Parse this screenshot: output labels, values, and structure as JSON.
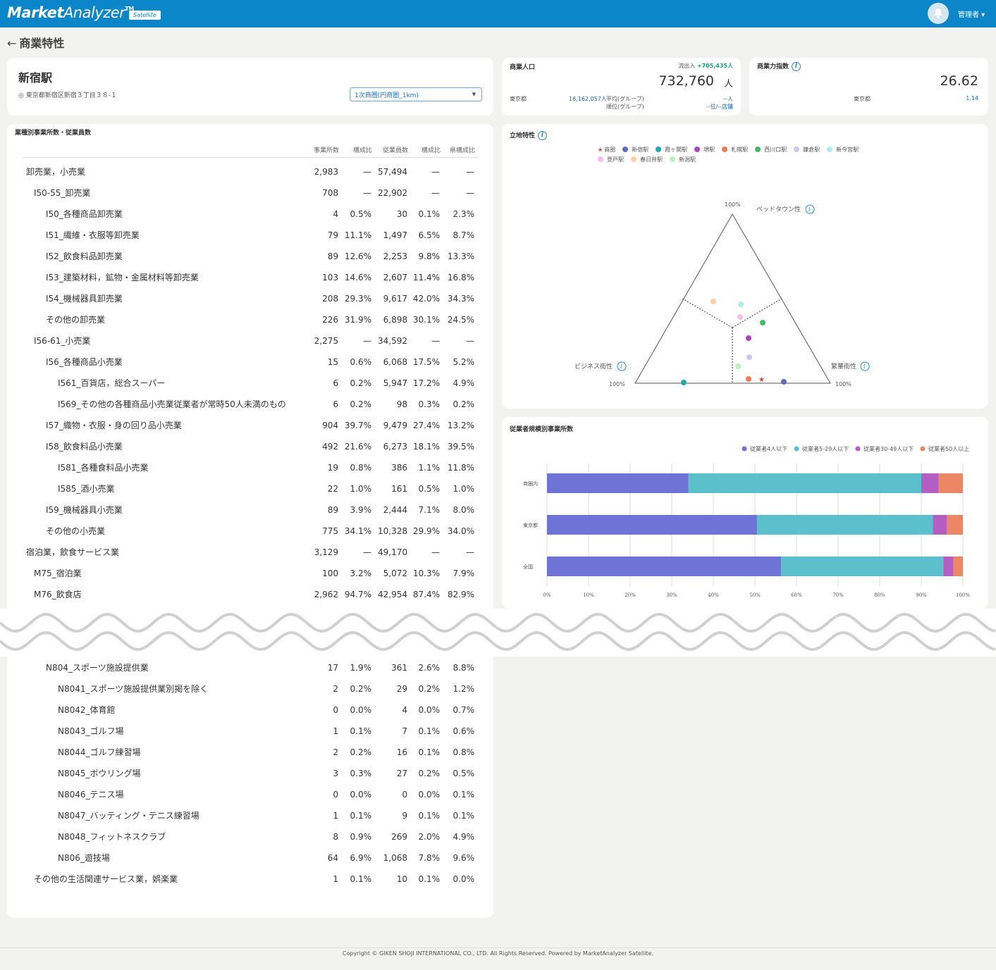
{
  "header": {
    "logo_bold": "Market",
    "logo_thin": "Analyzer",
    "logo_tm": "TM",
    "badge": "Satellite",
    "user": "管理者 ▾"
  },
  "page": {
    "back_arrow": "←",
    "title": "商業特性"
  },
  "station": {
    "name": "新宿駅",
    "address": "◎ 東京都新宿区新宿３丁目３８-１",
    "select_value": "1次商圏(円商圏_1km)"
  },
  "population": {
    "title": "商業人口",
    "flow_label": "流出入",
    "flow_value": "+705,435人",
    "value": "732,760",
    "unit": "人",
    "pref_label": "東京都",
    "pref_value": "16,162,057人",
    "avg_label": "平均(グループ)",
    "avg_value": "--人",
    "rank_label": "順位(グループ)",
    "rank_value": "--位/--店舗"
  },
  "power_index": {
    "title": "商業力指数",
    "value": "26.62",
    "pref_label": "東京都",
    "pref_value": "1.14"
  },
  "industry": {
    "title": "業種別事業所数・従業員数",
    "columns": [
      "事業所数",
      "構成比",
      "従業員数",
      "構成比",
      "県構成比"
    ],
    "rows_top": [
      {
        "indent": 0,
        "name": "卸売業，小売業",
        "v1": "2,983",
        "v2": "—",
        "v3": "57,494",
        "v4": "—",
        "v5": "—",
        "trend": ""
      },
      {
        "indent": 1,
        "name": "I50-55_卸売業",
        "v1": "708",
        "v2": "—",
        "v3": "22,902",
        "v4": "—",
        "v5": "—",
        "trend": ""
      },
      {
        "indent": 2,
        "name": "I50_各種商品卸売業",
        "v1": "4",
        "v2": "0.5%",
        "v3": "30",
        "v4": "0.1%",
        "v5": "2.3%",
        "trend": "down"
      },
      {
        "indent": 2,
        "name": "I51_繊維・衣服等卸売業",
        "v1": "79",
        "v2": "11.1%",
        "v3": "1,497",
        "v4": "6.5%",
        "v5": "8.7%",
        "trend": "down"
      },
      {
        "indent": 2,
        "name": "I52_飲食料品卸売業",
        "v1": "89",
        "v2": "12.6%",
        "v3": "2,253",
        "v4": "9.8%",
        "v5": "13.3%",
        "trend": "down"
      },
      {
        "indent": 2,
        "name": "I53_建築材料，鉱物・金属材料等卸売業",
        "v1": "103",
        "v2": "14.6%",
        "v3": "2,607",
        "v4": "11.4%",
        "v5": "16.8%",
        "trend": "down"
      },
      {
        "indent": 2,
        "name": "I54_機械器具卸売業",
        "v1": "208",
        "v2": "29.3%",
        "v3": "9,617",
        "v4": "42.0%",
        "v5": "34.3%",
        "trend": "up"
      },
      {
        "indent": 2,
        "name": "その他の卸売業",
        "v1": "226",
        "v2": "31.9%",
        "v3": "6,898",
        "v4": "30.1%",
        "v5": "24.5%",
        "trend": "up"
      },
      {
        "indent": 1,
        "name": "I56-61_小売業",
        "v1": "2,275",
        "v2": "—",
        "v3": "34,592",
        "v4": "—",
        "v5": "—",
        "trend": ""
      },
      {
        "indent": 2,
        "name": "I56_各種商品小売業",
        "v1": "15",
        "v2": "0.6%",
        "v3": "6,068",
        "v4": "17.5%",
        "v5": "5.2%",
        "trend": "up"
      },
      {
        "indent": 3,
        "name": "I561_百貨店，総合スーパー",
        "v1": "6",
        "v2": "0.2%",
        "v3": "5,947",
        "v4": "17.2%",
        "v5": "4.9%",
        "trend": "up"
      },
      {
        "indent": 3,
        "name": "I569_その他の各種商品小売業従業者が常時50人未満のもの",
        "v1": "6",
        "v2": "0.2%",
        "v3": "98",
        "v4": "0.3%",
        "v5": "0.2%",
        "trend": "up"
      },
      {
        "indent": 2,
        "name": "I57_織物・衣服・身の回り品小売業",
        "v1": "904",
        "v2": "39.7%",
        "v3": "9,479",
        "v4": "27.4%",
        "v5": "13.2%",
        "trend": "up"
      },
      {
        "indent": 2,
        "name": "I58_飲食料品小売業",
        "v1": "492",
        "v2": "21.6%",
        "v3": "6,273",
        "v4": "18.1%",
        "v5": "39.5%",
        "trend": "down"
      },
      {
        "indent": 3,
        "name": "I581_各種食料品小売業",
        "v1": "19",
        "v2": "0.8%",
        "v3": "386",
        "v4": "1.1%",
        "v5": "11.8%",
        "trend": "down"
      },
      {
        "indent": 3,
        "name": "I585_酒小売業",
        "v1": "22",
        "v2": "1.0%",
        "v3": "161",
        "v4": "0.5%",
        "v5": "1.0%",
        "trend": "down"
      },
      {
        "indent": 2,
        "name": "I59_機械器具小売業",
        "v1": "89",
        "v2": "3.9%",
        "v3": "2,444",
        "v4": "7.1%",
        "v5": "8.0%",
        "trend": "down"
      },
      {
        "indent": 2,
        "name": "その他の小売業",
        "v1": "775",
        "v2": "34.1%",
        "v3": "10,328",
        "v4": "29.9%",
        "v5": "34.0%",
        "trend": "down"
      },
      {
        "indent": 0,
        "name": "宿泊業，飲食サービス業",
        "v1": "3,129",
        "v2": "—",
        "v3": "49,170",
        "v4": "—",
        "v5": "—",
        "trend": ""
      },
      {
        "indent": 1,
        "name": "M75_宿泊業",
        "v1": "100",
        "v2": "3.2%",
        "v3": "5,072",
        "v4": "10.3%",
        "v5": "7.9%",
        "trend": "up"
      },
      {
        "indent": 1,
        "name": "M76_飲食店",
        "v1": "2,962",
        "v2": "94.7%",
        "v3": "42,954",
        "v4": "87.4%",
        "v5": "82.9%",
        "trend": "up"
      }
    ],
    "rows_bottom": [
      {
        "indent": 2,
        "name": "N804_スポーツ施設提供業",
        "v1": "17",
        "v2": "1.9%",
        "v3": "361",
        "v4": "2.6%",
        "v5": "8.8%",
        "trend": "down"
      },
      {
        "indent": 3,
        "name": "N8041_スポーツ施設提供業別掲を除く",
        "v1": "2",
        "v2": "0.2%",
        "v3": "29",
        "v4": "0.2%",
        "v5": "1.2%",
        "trend": "down"
      },
      {
        "indent": 3,
        "name": "N8042_体育館",
        "v1": "0",
        "v2": "0.0%",
        "v3": "4",
        "v4": "0.0%",
        "v5": "0.7%",
        "trend": "down"
      },
      {
        "indent": 3,
        "name": "N8043_ゴルフ場",
        "v1": "1",
        "v2": "0.1%",
        "v3": "7",
        "v4": "0.1%",
        "v5": "0.6%",
        "trend": "down"
      },
      {
        "indent": 3,
        "name": "N8044_ゴルフ練習場",
        "v1": "2",
        "v2": "0.2%",
        "v3": "16",
        "v4": "0.1%",
        "v5": "0.8%",
        "trend": "down"
      },
      {
        "indent": 3,
        "name": "N8045_ボウリング場",
        "v1": "3",
        "v2": "0.3%",
        "v3": "27",
        "v4": "0.2%",
        "v5": "0.5%",
        "trend": "down"
      },
      {
        "indent": 3,
        "name": "N8046_テニス場",
        "v1": "0",
        "v2": "0.0%",
        "v3": "0",
        "v4": "0.0%",
        "v5": "0.1%",
        "trend": "down"
      },
      {
        "indent": 3,
        "name": "N8047_バッティング・テニス練習場",
        "v1": "1",
        "v2": "0.1%",
        "v3": "9",
        "v4": "0.1%",
        "v5": "0.1%",
        "trend": "up"
      },
      {
        "indent": 3,
        "name": "N8048_フィットネスクラブ",
        "v1": "8",
        "v2": "0.9%",
        "v3": "269",
        "v4": "2.0%",
        "v5": "4.9%",
        "trend": "down"
      },
      {
        "indent": 3,
        "name": "N806_遊技場",
        "v1": "64",
        "v2": "6.9%",
        "v3": "1,068",
        "v4": "7.8%",
        "v5": "9.6%",
        "trend": "down"
      },
      {
        "indent": 1,
        "name": "その他の生活関連サービス業，娯楽業",
        "v1": "1",
        "v2": "0.1%",
        "v3": "10",
        "v4": "0.1%",
        "v5": "0.0%",
        "trend": "up"
      }
    ]
  },
  "location": {
    "title": "立地特性",
    "legend": [
      {
        "name": "商圏",
        "color": "#e53935",
        "marker": "star"
      },
      {
        "name": "新宿駅",
        "color": "#5c6bc0",
        "marker": "dot"
      },
      {
        "name": "霞ヶ関駅",
        "color": "#26a6a6",
        "marker": "dot"
      },
      {
        "name": "堺駅",
        "color": "#ab47bc",
        "marker": "dot"
      },
      {
        "name": "札幌駅",
        "color": "#ef7b55",
        "marker": "dot"
      },
      {
        "name": "西川口駅",
        "color": "#43b86a",
        "marker": "dot"
      },
      {
        "name": "鎌倉駅",
        "color": "#c5cae9",
        "marker": "dot"
      },
      {
        "name": "新今宮駅",
        "color": "#b2ebf2",
        "marker": "dot"
      },
      {
        "name": "登戸駅",
        "color": "#f8bbf0",
        "marker": "dot"
      },
      {
        "name": "春日井駅",
        "color": "#ffd0a8",
        "marker": "dot"
      },
      {
        "name": "新潟駅",
        "color": "#b9f0c0",
        "marker": "dot"
      }
    ],
    "top_label": "ベッドタウン性",
    "left_label": "ビジネス街性",
    "right_label": "繁華街性",
    "top_pct": "100%",
    "left_pct": "100%",
    "right_pct": "100%"
  },
  "scale": {
    "title": "従業者規模別事業所数",
    "legend": [
      {
        "name": "従業者4人以下",
        "color": "#7073d6"
      },
      {
        "name": "従業者5-29人以下",
        "color": "#5bc0cc"
      },
      {
        "name": "従業者30-49人以下",
        "color": "#b45ec4"
      },
      {
        "name": "従業者50人以上",
        "color": "#ec8765"
      }
    ],
    "categories": [
      "商圏内",
      "東京都",
      "全国"
    ],
    "ticks": [
      "0%",
      "10%",
      "20%",
      "30%",
      "40%",
      "50%",
      "60%",
      "70%",
      "80%",
      "90%",
      "100%"
    ]
  },
  "chart_data": {
    "type": "bar",
    "orientation": "horizontal-stacked-percent",
    "title": "従業者規模別事業所数",
    "categories": [
      "商圏内",
      "東京都",
      "全国"
    ],
    "series": [
      {
        "name": "従業者4人以下",
        "values": [
          34,
          50.5,
          56.3
        ]
      },
      {
        "name": "従業者5-29人以下",
        "values": [
          56,
          42.3,
          39
        ]
      },
      {
        "name": "従業者30-49人以下",
        "values": [
          4.2,
          3.3,
          2.4
        ]
      },
      {
        "name": "従業者50人以上",
        "values": [
          5.8,
          3.9,
          2.3
        ]
      }
    ],
    "xlim": [
      0,
      100
    ],
    "grid": true,
    "legend": "top-right"
  },
  "footer": "Copyright © GIKEN SHOJI INTERNATIONAL CO., LTD. All Rights Reserved. Powered by MarketAnalyzer Satellite."
}
